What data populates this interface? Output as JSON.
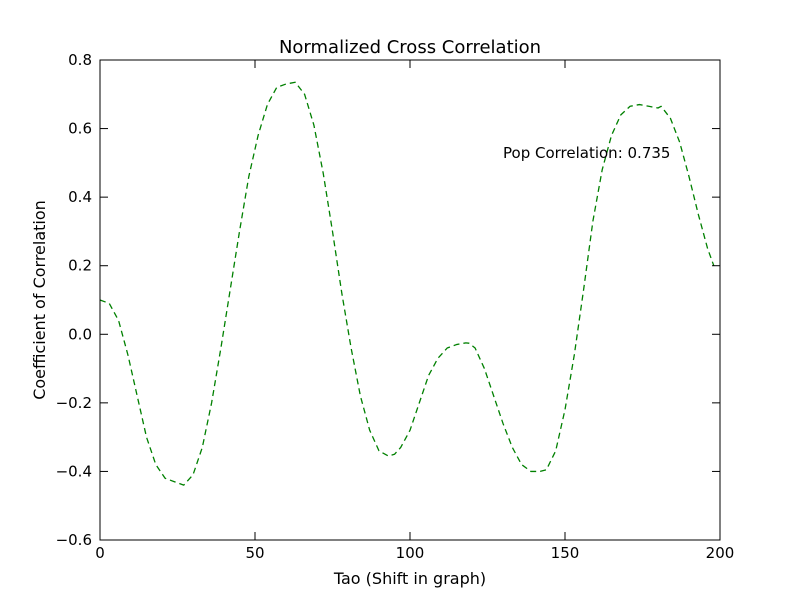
{
  "chart_data": {
    "type": "line",
    "title": "Normalized Cross Correlation",
    "xlabel": "Tao (Shift in graph)",
    "ylabel": "Coefficient of Correlation",
    "xlim": [
      0,
      200
    ],
    "ylim": [
      -0.6,
      0.8
    ],
    "xticks": [
      0,
      50,
      100,
      150,
      200
    ],
    "xtick_labels": [
      "0",
      "50",
      "100",
      "150",
      "200"
    ],
    "yticks": [
      -0.6,
      -0.4,
      -0.2,
      0.0,
      0.2,
      0.4,
      0.6,
      0.8
    ],
    "ytick_labels": [
      "−0.6",
      "−0.4",
      "−0.2",
      "0.0",
      "0.2",
      "0.4",
      "0.6",
      "0.8"
    ],
    "grid": false,
    "legend": "none",
    "line_style": "dashed",
    "series": [
      {
        "color": "#008000",
        "x": [
          0,
          3,
          6,
          9,
          12,
          15,
          18,
          21,
          24,
          27,
          30,
          33,
          36,
          39,
          42,
          45,
          48,
          51,
          54,
          57,
          60,
          63,
          66,
          69,
          72,
          75,
          78,
          81,
          84,
          87,
          90,
          93,
          95,
          97,
          100,
          103,
          106,
          109,
          112,
          115,
          118,
          119,
          121,
          124,
          127,
          130,
          133,
          136,
          139,
          142,
          144,
          147,
          150,
          153,
          156,
          159,
          162,
          165,
          168,
          171,
          174,
          177,
          180,
          181,
          184,
          187,
          190,
          193,
          196,
          198
        ],
        "y": [
          0.1,
          0.09,
          0.04,
          -0.06,
          -0.18,
          -0.3,
          -0.38,
          -0.42,
          -0.43,
          -0.44,
          -0.41,
          -0.33,
          -0.2,
          -0.04,
          0.13,
          0.3,
          0.46,
          0.58,
          0.67,
          0.72,
          0.73,
          0.735,
          0.7,
          0.61,
          0.47,
          0.3,
          0.12,
          -0.04,
          -0.18,
          -0.28,
          -0.34,
          -0.355,
          -0.35,
          -0.33,
          -0.28,
          -0.2,
          -0.12,
          -0.07,
          -0.04,
          -0.03,
          -0.025,
          -0.026,
          -0.04,
          -0.1,
          -0.18,
          -0.26,
          -0.33,
          -0.38,
          -0.4,
          -0.4,
          -0.395,
          -0.34,
          -0.22,
          -0.06,
          0.13,
          0.33,
          0.48,
          0.58,
          0.64,
          0.665,
          0.67,
          0.665,
          0.66,
          0.665,
          0.63,
          0.56,
          0.46,
          0.35,
          0.25,
          0.2
        ]
      }
    ],
    "annotations": [
      {
        "text": "Pop Correlation: 0.735",
        "x": 130,
        "y": 0.5
      }
    ]
  }
}
